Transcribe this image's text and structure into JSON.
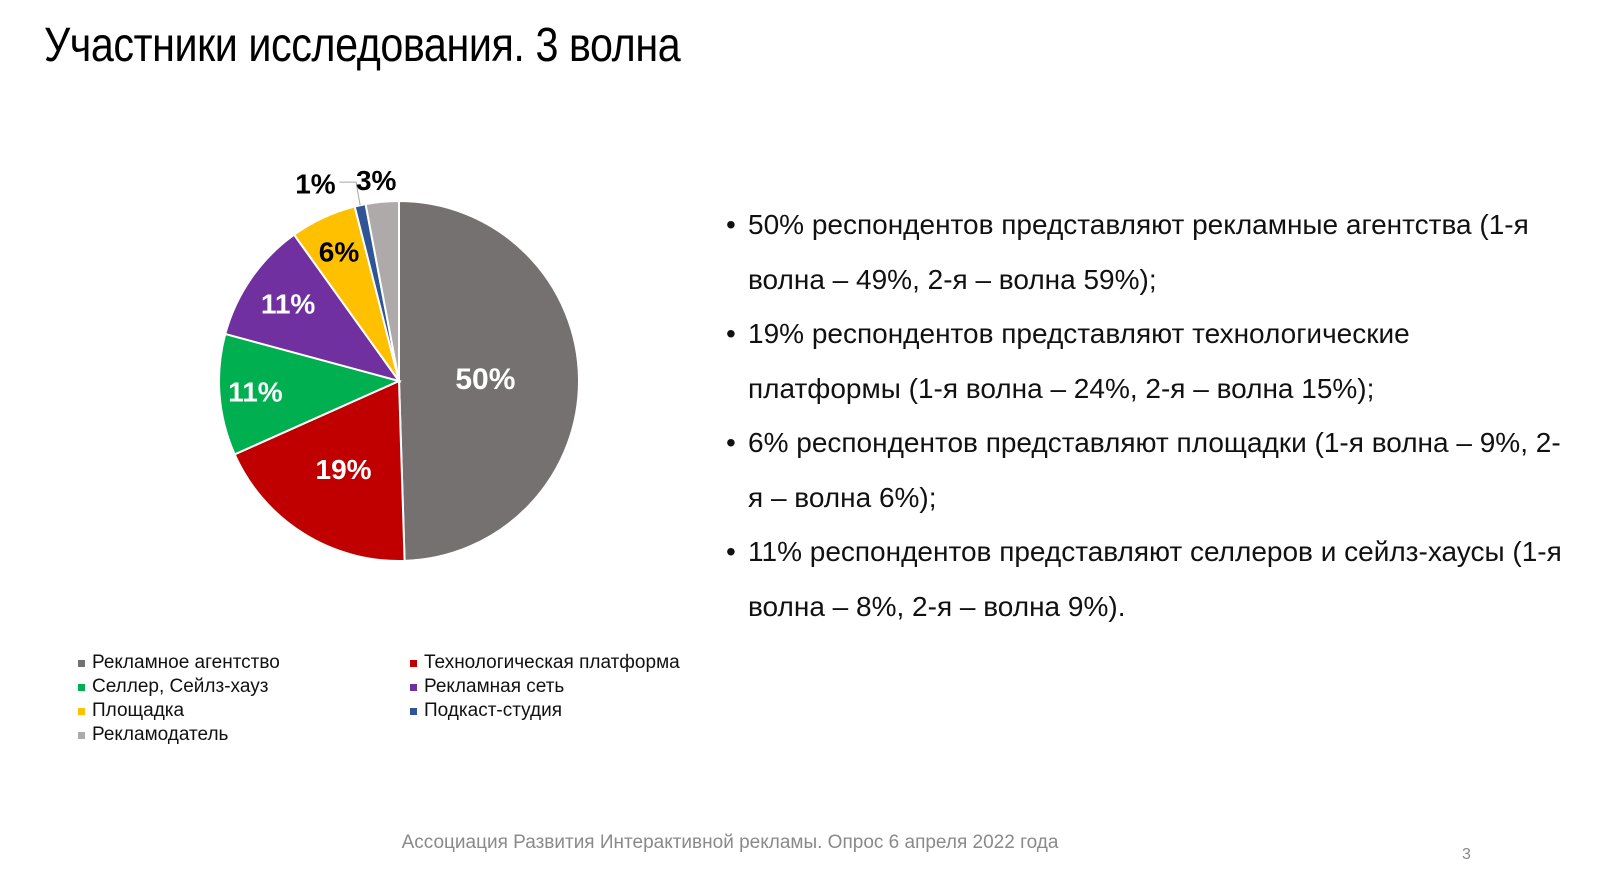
{
  "slide": {
    "title": "Участники исследования. 3 волна",
    "footer": "Ассоциация Развития Интерактивной рекламы. Опрос 6 апреля 2022 года",
    "page_number": "3"
  },
  "chart_data": {
    "type": "pie",
    "title": "",
    "legend_position": "bottom",
    "slices": [
      {
        "label": "Рекламное агентство",
        "value": 50,
        "value_label": "50%",
        "color": "#767171",
        "label_color": "#ffffff"
      },
      {
        "label": "Технологическая платформа",
        "value": 19,
        "value_label": "19%",
        "color": "#c00000",
        "label_color": "#ffffff"
      },
      {
        "label": "Селлер, Сейлз-хауз",
        "value": 11,
        "value_label": "11%",
        "color": "#00b050",
        "label_color": "#ffffff"
      },
      {
        "label": "Рекламная сеть",
        "value": 11,
        "value_label": "11%",
        "color": "#7030a0",
        "label_color": "#ffffff"
      },
      {
        "label": "Площадка",
        "value": 6,
        "value_label": "6%",
        "color": "#ffc000",
        "label_color": "#000000"
      },
      {
        "label": "Подкаст-студия",
        "value": 1,
        "value_label": "1%",
        "color": "#2f5597",
        "label_color": "#000000"
      },
      {
        "label": "Рекламодатель",
        "value": 3,
        "value_label": "3%",
        "color": "#aeaaaa",
        "label_color": "#000000"
      }
    ]
  },
  "bullets": [
    "50% респондентов представляют рекламные агентства (1-я волна – 49%, 2-я – волна 59%);",
    "19% респондентов представляют технологические платформы (1-я волна – 24%, 2-я – волна 15%);",
    "6% респондентов представляют площадки (1-я волна – 9%, 2-я – волна 6%);",
    "11% респондентов представляют селлеров и сейлз-хаусы (1-я волна – 8%, 2-я – волна 9%)."
  ]
}
